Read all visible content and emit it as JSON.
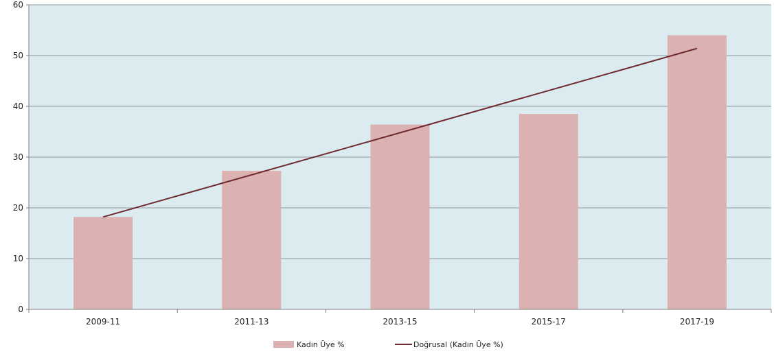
{
  "chart_data": {
    "type": "bar",
    "categories": [
      "2009-11",
      "2011-13",
      "2013-15",
      "2015-17",
      "2017-19"
    ],
    "series": [
      {
        "name": "Kadın Üye %",
        "type": "bar",
        "values": [
          18.2,
          27.3,
          36.4,
          38.5,
          54.0
        ],
        "color": "#dbb1b1"
      }
    ],
    "trendline": {
      "name": "Doğrusal (Kadın Üye %)",
      "type": "linear",
      "values": [
        18.2,
        26.5,
        34.8,
        43.1,
        51.4
      ],
      "color": "#6e2a2f"
    },
    "ylim": [
      0,
      60
    ],
    "yticks": [
      0,
      10,
      20,
      30,
      40,
      50,
      60
    ],
    "grid": true,
    "legend": "bottom-center",
    "plot_background": "#dbebf0",
    "gridline_color": "#8c9aa0"
  }
}
